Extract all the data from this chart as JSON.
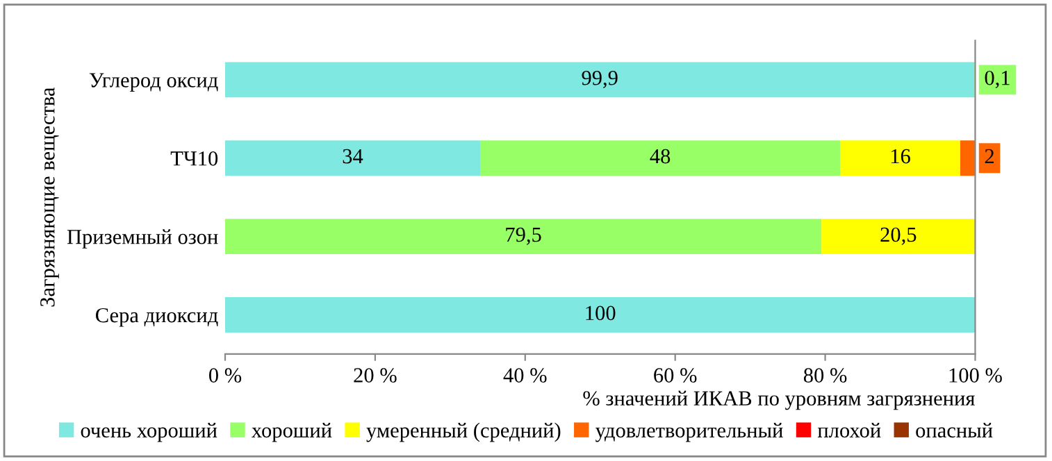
{
  "chart_data": {
    "type": "bar",
    "orientation": "horizontal",
    "stacked": true,
    "categories": [
      "Углерод оксид",
      "ТЧ10",
      "Приземный озон",
      "Сера диоксид"
    ],
    "xlabel": "% значений ИКАВ по уровням загрязнения",
    "ylabel": "Загрязняющие вещества",
    "xlim": [
      0,
      100
    ],
    "xticks": [
      {
        "value": 0,
        "label": "0 %"
      },
      {
        "value": 20,
        "label": "20 %"
      },
      {
        "value": 40,
        "label": "40 %"
      },
      {
        "value": 60,
        "label": "60 %"
      },
      {
        "value": 80,
        "label": "80 %"
      },
      {
        "value": 100,
        "label": "100 %"
      }
    ],
    "grid": false,
    "legend": "bottom",
    "series": [
      {
        "name": "очень хороший",
        "color": "#7fe8e0",
        "values": [
          99.9,
          34,
          null,
          100
        ],
        "value_labels": [
          "99,9",
          "34",
          null,
          "100"
        ]
      },
      {
        "name": "хороший",
        "color": "#99ff66",
        "values": [
          0.1,
          48,
          79.5,
          null
        ],
        "value_labels": [
          "0,1",
          "48",
          "79,5",
          null
        ]
      },
      {
        "name": "умеренный (средний)",
        "color": "#ffff00",
        "values": [
          null,
          16,
          20.5,
          null
        ],
        "value_labels": [
          null,
          "16",
          "20,5",
          null
        ]
      },
      {
        "name": "удовлетворительный",
        "color": "#ff6600",
        "values": [
          null,
          2,
          null,
          null
        ],
        "value_labels": [
          null,
          "2",
          null,
          null
        ]
      },
      {
        "name": "плохой",
        "color": "#ff0000",
        "values": [
          null,
          null,
          null,
          null
        ]
      },
      {
        "name": "опасный",
        "color": "#993300",
        "values": [
          null,
          null,
          null,
          null
        ]
      }
    ]
  }
}
